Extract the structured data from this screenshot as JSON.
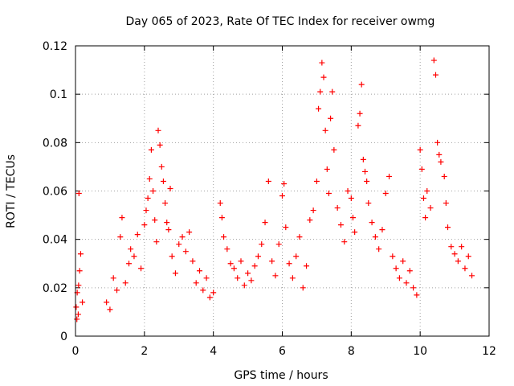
{
  "chart_data": {
    "type": "scatter",
    "title": "Day 065 of 2023, Rate Of TEC Index for receiver owmg",
    "xlabel": "GPS time / hours",
    "ylabel": "ROTI / TECUs",
    "xlim": [
      0,
      12
    ],
    "ylim": [
      0,
      0.12
    ],
    "x_ticks": [
      0,
      2,
      4,
      6,
      8,
      10,
      12
    ],
    "y_ticks": [
      0,
      0.02,
      0.04,
      0.06,
      0.08,
      0.1,
      0.12
    ],
    "x_tick_labels": [
      "0",
      "2",
      "4",
      "6",
      "8",
      "10",
      "12"
    ],
    "y_tick_labels": [
      "0",
      "0.02",
      "0.04",
      "0.06",
      "0.08",
      "0.1",
      "0.12"
    ],
    "grid": true,
    "marker": "+",
    "marker_color": "#ff0000",
    "series": [
      {
        "name": "ROTI",
        "points": [
          [
            0.02,
            0.012
          ],
          [
            0.05,
            0.018
          ],
          [
            0.08,
            0.009
          ],
          [
            0.1,
            0.059
          ],
          [
            0.12,
            0.027
          ],
          [
            0.15,
            0.034
          ],
          [
            0.2,
            0.014
          ],
          [
            0.04,
            0.007
          ],
          [
            0.09,
            0.021
          ],
          [
            0.9,
            0.014
          ],
          [
            1.0,
            0.011
          ],
          [
            1.1,
            0.024
          ],
          [
            1.2,
            0.019
          ],
          [
            1.3,
            0.041
          ],
          [
            1.35,
            0.049
          ],
          [
            1.45,
            0.022
          ],
          [
            1.55,
            0.03
          ],
          [
            1.6,
            0.036
          ],
          [
            1.7,
            0.033
          ],
          [
            1.8,
            0.042
          ],
          [
            1.9,
            0.028
          ],
          [
            2.0,
            0.046
          ],
          [
            2.05,
            0.052
          ],
          [
            2.1,
            0.057
          ],
          [
            2.15,
            0.065
          ],
          [
            2.2,
            0.077
          ],
          [
            2.25,
            0.06
          ],
          [
            2.3,
            0.048
          ],
          [
            2.35,
            0.039
          ],
          [
            2.4,
            0.085
          ],
          [
            2.45,
            0.079
          ],
          [
            2.5,
            0.07
          ],
          [
            2.55,
            0.064
          ],
          [
            2.6,
            0.055
          ],
          [
            2.65,
            0.047
          ],
          [
            2.7,
            0.044
          ],
          [
            2.75,
            0.061
          ],
          [
            2.8,
            0.033
          ],
          [
            2.9,
            0.026
          ],
          [
            3.0,
            0.038
          ],
          [
            3.1,
            0.041
          ],
          [
            3.2,
            0.035
          ],
          [
            3.3,
            0.043
          ],
          [
            3.4,
            0.031
          ],
          [
            3.5,
            0.022
          ],
          [
            3.6,
            0.027
          ],
          [
            3.7,
            0.019
          ],
          [
            3.8,
            0.024
          ],
          [
            3.9,
            0.016
          ],
          [
            4.0,
            0.018
          ],
          [
            4.2,
            0.055
          ],
          [
            4.25,
            0.049
          ],
          [
            4.3,
            0.041
          ],
          [
            4.4,
            0.036
          ],
          [
            4.5,
            0.03
          ],
          [
            4.6,
            0.028
          ],
          [
            4.7,
            0.024
          ],
          [
            4.8,
            0.031
          ],
          [
            4.9,
            0.021
          ],
          [
            5.0,
            0.026
          ],
          [
            5.1,
            0.023
          ],
          [
            5.2,
            0.029
          ],
          [
            5.3,
            0.033
          ],
          [
            5.4,
            0.038
          ],
          [
            5.5,
            0.047
          ],
          [
            5.6,
            0.064
          ],
          [
            5.7,
            0.031
          ],
          [
            5.8,
            0.025
          ],
          [
            5.9,
            0.038
          ],
          [
            6.0,
            0.058
          ],
          [
            6.05,
            0.063
          ],
          [
            6.1,
            0.045
          ],
          [
            6.2,
            0.03
          ],
          [
            6.3,
            0.024
          ],
          [
            6.4,
            0.033
          ],
          [
            6.5,
            0.041
          ],
          [
            6.6,
            0.02
          ],
          [
            6.7,
            0.029
          ],
          [
            6.8,
            0.048
          ],
          [
            6.9,
            0.052
          ],
          [
            7.0,
            0.064
          ],
          [
            7.05,
            0.094
          ],
          [
            7.1,
            0.101
          ],
          [
            7.15,
            0.113
          ],
          [
            7.2,
            0.107
          ],
          [
            7.25,
            0.085
          ],
          [
            7.3,
            0.069
          ],
          [
            7.35,
            0.059
          ],
          [
            7.4,
            0.09
          ],
          [
            7.45,
            0.101
          ],
          [
            7.5,
            0.077
          ],
          [
            7.6,
            0.053
          ],
          [
            7.7,
            0.046
          ],
          [
            7.8,
            0.039
          ],
          [
            7.9,
            0.06
          ],
          [
            8.0,
            0.057
          ],
          [
            8.05,
            0.049
          ],
          [
            8.1,
            0.043
          ],
          [
            8.2,
            0.087
          ],
          [
            8.25,
            0.092
          ],
          [
            8.3,
            0.104
          ],
          [
            8.35,
            0.073
          ],
          [
            8.4,
            0.068
          ],
          [
            8.45,
            0.064
          ],
          [
            8.5,
            0.055
          ],
          [
            8.6,
            0.047
          ],
          [
            8.7,
            0.041
          ],
          [
            8.8,
            0.036
          ],
          [
            8.9,
            0.044
          ],
          [
            9.0,
            0.059
          ],
          [
            9.1,
            0.066
          ],
          [
            9.2,
            0.033
          ],
          [
            9.3,
            0.028
          ],
          [
            9.4,
            0.024
          ],
          [
            9.5,
            0.031
          ],
          [
            9.6,
            0.022
          ],
          [
            9.7,
            0.027
          ],
          [
            9.8,
            0.02
          ],
          [
            9.9,
            0.017
          ],
          [
            10.0,
            0.077
          ],
          [
            10.05,
            0.069
          ],
          [
            10.1,
            0.057
          ],
          [
            10.15,
            0.049
          ],
          [
            10.2,
            0.06
          ],
          [
            10.3,
            0.053
          ],
          [
            10.4,
            0.114
          ],
          [
            10.45,
            0.108
          ],
          [
            10.5,
            0.08
          ],
          [
            10.55,
            0.075
          ],
          [
            10.6,
            0.072
          ],
          [
            10.7,
            0.066
          ],
          [
            10.75,
            0.055
          ],
          [
            10.8,
            0.045
          ],
          [
            10.9,
            0.037
          ],
          [
            11.0,
            0.034
          ],
          [
            11.1,
            0.031
          ],
          [
            11.2,
            0.037
          ],
          [
            11.3,
            0.028
          ],
          [
            11.4,
            0.033
          ],
          [
            11.5,
            0.025
          ]
        ]
      }
    ]
  }
}
